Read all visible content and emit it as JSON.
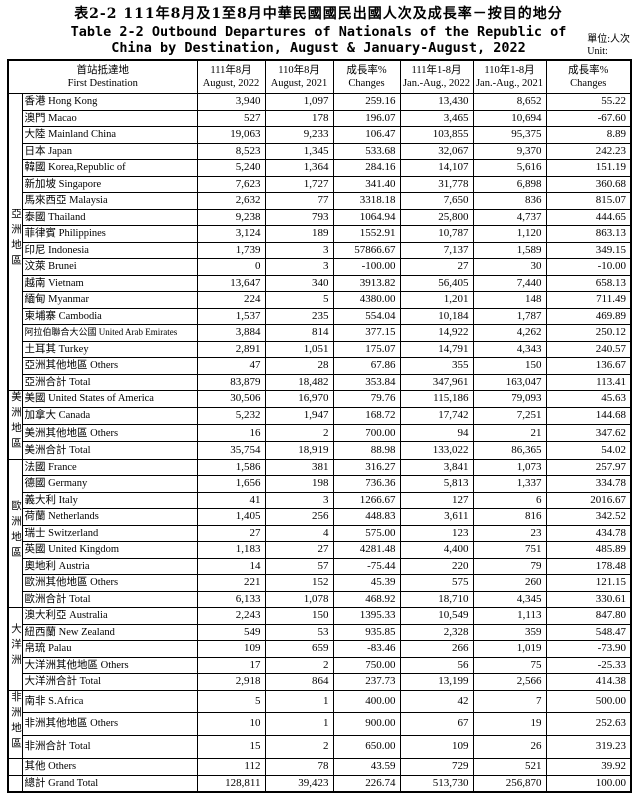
{
  "title": {
    "zh": "表2-2  111年8月及1至8月中華民國國民出國人次及成長率－按目的地分",
    "en_line1": "Table 2-2 Outbound Departures of Nationals of the Republic of",
    "en_line2": "China by Destination, August & January-August, 2022"
  },
  "unit": {
    "zh": "單位:人次",
    "en": "Unit:"
  },
  "table_header": {
    "destination": {
      "zh": "首站抵達地",
      "en": "First Destination"
    },
    "columns": [
      {
        "zh": "111年8月",
        "en": "August, 2022"
      },
      {
        "zh": "110年8月",
        "en": "August, 2021"
      },
      {
        "zh": "成長率%",
        "en": "Changes"
      },
      {
        "zh": "111年1-8月",
        "en": "Jan.-Aug., 2022"
      },
      {
        "zh": "110年1-8月",
        "en": "Jan.-Aug., 2021"
      },
      {
        "zh": "成長率%",
        "en": "Changes"
      }
    ]
  },
  "groups": [
    {
      "label": "亞洲地區",
      "rows": [
        {
          "dest": "香港 Hong Kong",
          "values": [
            "3,940",
            "1,097",
            "259.16",
            "13,430",
            "8,652",
            "55.22"
          ]
        },
        {
          "dest": "澳門 Macao",
          "values": [
            "527",
            "178",
            "196.07",
            "3,465",
            "10,694",
            "-67.60"
          ]
        },
        {
          "dest": "大陸 Mainland China",
          "values": [
            "19,063",
            "9,233",
            "106.47",
            "103,855",
            "95,375",
            "8.89"
          ]
        },
        {
          "dest": "日本 Japan",
          "values": [
            "8,523",
            "1,345",
            "533.68",
            "32,067",
            "9,370",
            "242.23"
          ]
        },
        {
          "dest": "韓國 Korea,Republic of",
          "values": [
            "5,240",
            "1,364",
            "284.16",
            "14,107",
            "5,616",
            "151.19"
          ]
        },
        {
          "dest": "新加坡 Singapore",
          "values": [
            "7,623",
            "1,727",
            "341.40",
            "31,778",
            "6,898",
            "360.68"
          ]
        },
        {
          "dest": "馬來西亞 Malaysia",
          "values": [
            "2,632",
            "77",
            "3318.18",
            "7,650",
            "836",
            "815.07"
          ]
        },
        {
          "dest": "泰國 Thailand",
          "values": [
            "9,238",
            "793",
            "1064.94",
            "25,800",
            "4,737",
            "444.65"
          ]
        },
        {
          "dest": "菲律賓 Philippines",
          "values": [
            "3,124",
            "189",
            "1552.91",
            "10,787",
            "1,120",
            "863.13"
          ]
        },
        {
          "dest": "印尼 Indonesia",
          "values": [
            "1,739",
            "3",
            "57866.67",
            "7,137",
            "1,589",
            "349.15"
          ]
        },
        {
          "dest": "汶萊 Brunei",
          "values": [
            "0",
            "3",
            "-100.00",
            "27",
            "30",
            "-10.00"
          ]
        },
        {
          "dest": "越南 Vietnam",
          "values": [
            "13,647",
            "340",
            "3913.82",
            "56,405",
            "7,440",
            "658.13"
          ]
        },
        {
          "dest": "緬甸 Myanmar",
          "values": [
            "224",
            "5",
            "4380.00",
            "1,201",
            "148",
            "711.49"
          ]
        },
        {
          "dest": "柬埔寨 Cambodia",
          "values": [
            "1,537",
            "235",
            "554.04",
            "10,184",
            "1,787",
            "469.89"
          ]
        },
        {
          "dest": "阿拉伯聯合大公國 United Arab Emirates",
          "values": [
            "3,884",
            "814",
            "377.15",
            "14,922",
            "4,262",
            "250.12"
          ]
        },
        {
          "dest": "土耳其 Turkey",
          "values": [
            "2,891",
            "1,051",
            "175.07",
            "14,791",
            "4,343",
            "240.57"
          ]
        },
        {
          "dest": "亞洲其他地區 Others",
          "values": [
            "47",
            "28",
            "67.86",
            "355",
            "150",
            "136.67"
          ]
        },
        {
          "dest": "亞洲合計 Total",
          "values": [
            "83,879",
            "18,482",
            "353.84",
            "347,961",
            "163,047",
            "113.41"
          ]
        }
      ]
    },
    {
      "label": "美洲地區",
      "rows": [
        {
          "dest": "美國 United States of America",
          "values": [
            "30,506",
            "16,970",
            "79.76",
            "115,186",
            "79,093",
            "45.63"
          ]
        },
        {
          "dest": "加拿大 Canada",
          "values": [
            "5,232",
            "1,947",
            "168.72",
            "17,742",
            "7,251",
            "144.68"
          ]
        },
        {
          "dest": "美洲其他地區 Others",
          "values": [
            "16",
            "2",
            "700.00",
            "94",
            "21",
            "347.62"
          ]
        },
        {
          "dest": "美洲合計 Total",
          "values": [
            "35,754",
            "18,919",
            "88.98",
            "133,022",
            "86,365",
            "54.02"
          ]
        }
      ]
    },
    {
      "label": "歐洲地區",
      "rows": [
        {
          "dest": "法國 France",
          "values": [
            "1,586",
            "381",
            "316.27",
            "3,841",
            "1,073",
            "257.97"
          ]
        },
        {
          "dest": "德國 Germany",
          "values": [
            "1,656",
            "198",
            "736.36",
            "5,813",
            "1,337",
            "334.78"
          ]
        },
        {
          "dest": "義大利 Italy",
          "values": [
            "41",
            "3",
            "1266.67",
            "127",
            "6",
            "2016.67"
          ]
        },
        {
          "dest": "荷蘭 Netherlands",
          "values": [
            "1,405",
            "256",
            "448.83",
            "3,611",
            "816",
            "342.52"
          ]
        },
        {
          "dest": "瑞士 Switzerland",
          "values": [
            "27",
            "4",
            "575.00",
            "123",
            "23",
            "434.78"
          ]
        },
        {
          "dest": "英國 United Kingdom",
          "values": [
            "1,183",
            "27",
            "4281.48",
            "4,400",
            "751",
            "485.89"
          ]
        },
        {
          "dest": "奧地利 Austria",
          "values": [
            "14",
            "57",
            "-75.44",
            "220",
            "79",
            "178.48"
          ]
        },
        {
          "dest": "歐洲其他地區 Others",
          "values": [
            "221",
            "152",
            "45.39",
            "575",
            "260",
            "121.15"
          ]
        },
        {
          "dest": "歐洲合計 Total",
          "values": [
            "6,133",
            "1,078",
            "468.92",
            "18,710",
            "4,345",
            "330.61"
          ]
        }
      ]
    },
    {
      "label": "大洋洲",
      "rows": [
        {
          "dest": "澳大利亞 Australia",
          "values": [
            "2,243",
            "150",
            "1395.33",
            "10,549",
            "1,113",
            "847.80"
          ]
        },
        {
          "dest": "紐西蘭 New Zealand",
          "values": [
            "549",
            "53",
            "935.85",
            "2,328",
            "359",
            "548.47"
          ]
        },
        {
          "dest": "帛琉 Palau",
          "values": [
            "109",
            "659",
            "-83.46",
            "266",
            "1,019",
            "-73.90"
          ]
        },
        {
          "dest": "大洋洲其他地區 Others",
          "values": [
            "17",
            "2",
            "750.00",
            "56",
            "75",
            "-25.33"
          ]
        },
        {
          "dest": "大洋洲合計 Total",
          "values": [
            "2,918",
            "864",
            "237.73",
            "13,199",
            "2,566",
            "414.38"
          ]
        }
      ]
    },
    {
      "label": "非洲地區",
      "rows": [
        {
          "dest": "南非 S.Africa",
          "values": [
            "5",
            "1",
            "400.00",
            "42",
            "7",
            "500.00"
          ]
        },
        {
          "dest": "非洲其他地區 Others",
          "values": [
            "10",
            "1",
            "900.00",
            "67",
            "19",
            "252.63"
          ]
        },
        {
          "dest": "非洲合計 Total",
          "values": [
            "15",
            "2",
            "650.00",
            "109",
            "26",
            "319.23"
          ]
        }
      ]
    },
    {
      "label": "",
      "rows": [
        {
          "dest": "其他 Others",
          "values": [
            "112",
            "78",
            "43.59",
            "729",
            "521",
            "39.92"
          ]
        }
      ]
    },
    {
      "label": "",
      "rows": [
        {
          "dest": "總計 Grand Total",
          "values": [
            "128,811",
            "39,423",
            "226.74",
            "513,730",
            "256,870",
            "100.00"
          ]
        }
      ]
    }
  ]
}
